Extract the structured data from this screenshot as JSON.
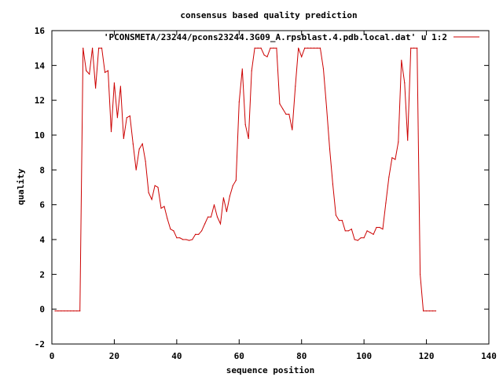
{
  "chart_data": {
    "type": "line",
    "title": "consensus based quality prediction",
    "xlabel": "sequence position",
    "ylabel": "quality",
    "xlim": [
      0,
      140
    ],
    "ylim": [
      -2,
      16
    ],
    "xticks": [
      0,
      20,
      40,
      60,
      80,
      100,
      120,
      140
    ],
    "yticks": [
      -2,
      0,
      2,
      4,
      6,
      8,
      10,
      12,
      14,
      16
    ],
    "grid": false,
    "legend_position": "top-right",
    "series": [
      {
        "name": "'PCONSMETA/23244/pcons23244.3G09_A.rpsblast.4.pdb.local.dat' u 1:2",
        "color": "#cc0000",
        "x": [
          1,
          2,
          3,
          4,
          5,
          6,
          7,
          8,
          9,
          10,
          11,
          12,
          13,
          14,
          15,
          16,
          17,
          18,
          19,
          20,
          21,
          22,
          23,
          24,
          25,
          26,
          27,
          28,
          29,
          30,
          31,
          32,
          33,
          34,
          35,
          36,
          37,
          38,
          39,
          40,
          41,
          42,
          43,
          44,
          45,
          46,
          47,
          48,
          49,
          50,
          51,
          52,
          53,
          54,
          55,
          56,
          57,
          58,
          59,
          60,
          61,
          62,
          63,
          64,
          65,
          66,
          67,
          68,
          69,
          70,
          71,
          72,
          73,
          74,
          75,
          76,
          77,
          78,
          79,
          80,
          81,
          82,
          83,
          84,
          85,
          86,
          87,
          88,
          89,
          90,
          91,
          92,
          93,
          94,
          95,
          96,
          97,
          98,
          99,
          100,
          101,
          102,
          103,
          104,
          105,
          106,
          107,
          108,
          109,
          110,
          111,
          112,
          113,
          114,
          115,
          116,
          117,
          118,
          119,
          120,
          121,
          122,
          123
        ],
        "y": [
          -0.1,
          -0.1,
          -0.1,
          -0.1,
          -0.1,
          -0.1,
          -0.1,
          -0.1,
          -0.1,
          15.0,
          13.7,
          13.5,
          15.0,
          12.7,
          15.0,
          15.0,
          13.6,
          13.7,
          10.2,
          13.0,
          11.0,
          12.8,
          9.8,
          11.0,
          11.1,
          9.5,
          8.0,
          9.2,
          9.5,
          8.5,
          6.7,
          6.3,
          7.1,
          7.0,
          5.8,
          5.9,
          5.2,
          4.6,
          4.5,
          4.1,
          4.1,
          4.0,
          4.0,
          3.95,
          4.0,
          4.3,
          4.3,
          4.5,
          4.9,
          5.3,
          5.3,
          6.0,
          5.3,
          4.9,
          6.4,
          5.6,
          6.5,
          7.1,
          7.4,
          11.9,
          13.8,
          10.6,
          9.8,
          13.7,
          15.0,
          15.0,
          15.0,
          14.6,
          14.5,
          15.0,
          15.0,
          15.0,
          11.8,
          11.5,
          11.2,
          11.2,
          10.3,
          12.8,
          15.0,
          14.5,
          15.0,
          15.0,
          15.0,
          15.0,
          15.0,
          15.0,
          13.8,
          11.6,
          9.2,
          7.2,
          5.4,
          5.1,
          5.1,
          4.5,
          4.5,
          4.6,
          4.0,
          3.95,
          4.1,
          4.1,
          4.5,
          4.4,
          4.3,
          4.7,
          4.7,
          4.6,
          6.1,
          7.6,
          8.7,
          8.6,
          9.6,
          14.3,
          13.0,
          9.7,
          15.0,
          15.0,
          15.0,
          2.0,
          -0.1,
          -0.1,
          -0.1,
          -0.1,
          -0.1
        ]
      }
    ]
  }
}
